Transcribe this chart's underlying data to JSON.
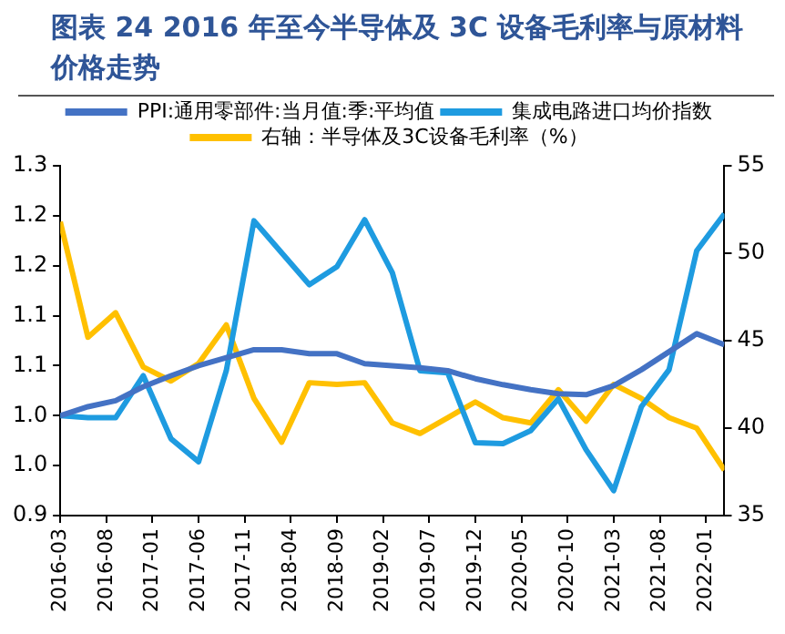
{
  "chart_data": {
    "type": "line",
    "title": "图表 24 2016 年至今半导体及 3C 设备毛利率与原材料价格走势",
    "x": [
      "2016-03",
      "2016-06",
      "2016-09",
      "2016-12",
      "2017-03",
      "2017-06",
      "2017-09",
      "2017-12",
      "2018-03",
      "2018-06",
      "2018-09",
      "2018-12",
      "2019-03",
      "2019-06",
      "2019-09",
      "2019-12",
      "2020-03",
      "2020-06",
      "2020-09",
      "2020-12",
      "2021-03",
      "2021-06",
      "2021-09",
      "2021-12",
      "2022-03"
    ],
    "xlim": [
      "2016-03",
      "2022-03"
    ],
    "xticks": [
      "2016-03",
      "2016-08",
      "2017-01",
      "2017-06",
      "2017-11",
      "2018-04",
      "2018-09",
      "2019-02",
      "2019-07",
      "2019-12",
      "2020-05",
      "2020-10",
      "2021-03",
      "2021-08",
      "2022-01"
    ],
    "ylim": [
      0.9,
      1.25
    ],
    "yticks": [
      0.9,
      {
        "value": 0.95,
        "label": "1.0"
      },
      {
        "value": 1.0,
        "label": "1.0"
      },
      {
        "value": 1.05,
        "label": "1.1"
      },
      {
        "value": 1.1,
        "label": "1.1"
      },
      {
        "value": 1.15,
        "label": "1.2"
      },
      {
        "value": 1.2,
        "label": "1.2"
      },
      {
        "value": 1.25,
        "label": "1.3"
      }
    ],
    "y2lim": [
      35,
      55
    ],
    "y2ticks": [
      35,
      40,
      45,
      50,
      55
    ],
    "legend": "top",
    "grid": false,
    "marker": "none",
    "line_style": "solid",
    "series": [
      {
        "name": "PPI:通用零部件:当月值:季:平均值",
        "color": "#4472c4",
        "values": [
          1.0,
          1.009,
          1.015,
          1.029,
          1.04,
          1.05,
          1.058,
          1.066,
          1.066,
          1.062,
          1.062,
          1.052,
          1.05,
          1.048,
          1.045,
          1.037,
          1.031,
          1.026,
          1.022,
          1.021,
          1.03,
          1.046,
          1.064,
          1.082,
          1.071
        ]
      },
      {
        "name": "集成电路进口均价指数",
        "color": "#1e9be0",
        "values": [
          1.0,
          0.998,
          0.998,
          1.04,
          0.977,
          0.954,
          1.045,
          1.195,
          1.163,
          1.131,
          1.149,
          1.196,
          1.143,
          1.045,
          1.043,
          0.973,
          0.972,
          0.985,
          1.017,
          0.966,
          0.925,
          1.009,
          1.046,
          1.165,
          1.202
        ]
      },
      {
        "name": "右轴：半导体及3C设备毛利率（%）",
        "color": "#ffc000",
        "axis": "y2",
        "values": [
          51.8,
          45.2,
          46.6,
          43.5,
          42.7,
          43.7,
          45.9,
          41.7,
          39.2,
          42.6,
          42.5,
          42.6,
          40.3,
          39.7,
          40.6,
          41.5,
          40.6,
          40.3,
          42.2,
          40.4,
          42.5,
          41.7,
          40.6,
          40.0,
          37.6
        ]
      }
    ]
  }
}
